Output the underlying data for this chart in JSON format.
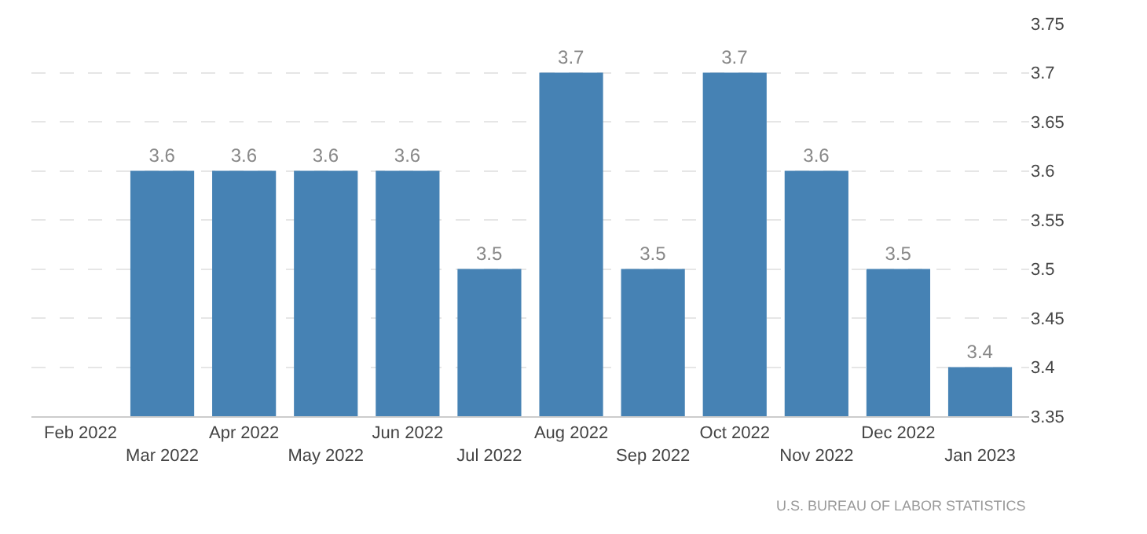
{
  "chart_data": {
    "type": "bar",
    "categories": [
      "Feb 2022",
      "Mar 2022",
      "Apr 2022",
      "May 2022",
      "Jun 2022",
      "Jul 2022",
      "Aug 2022",
      "Sep 2022",
      "Oct 2022",
      "Nov 2022",
      "Dec 2022",
      "Jan 2023"
    ],
    "values": [
      null,
      3.6,
      3.6,
      3.6,
      3.6,
      3.5,
      3.7,
      3.5,
      3.7,
      3.6,
      3.5,
      3.4
    ],
    "color": "#4682b4",
    "ylim": [
      3.35,
      3.75
    ],
    "yticks": [
      3.35,
      3.4,
      3.45,
      3.5,
      3.55,
      3.6,
      3.65,
      3.7,
      3.75
    ],
    "grid": "y",
    "data_labels": true,
    "annotations": [
      "U.S. BUREAU OF LABOR STATISTICS"
    ]
  }
}
